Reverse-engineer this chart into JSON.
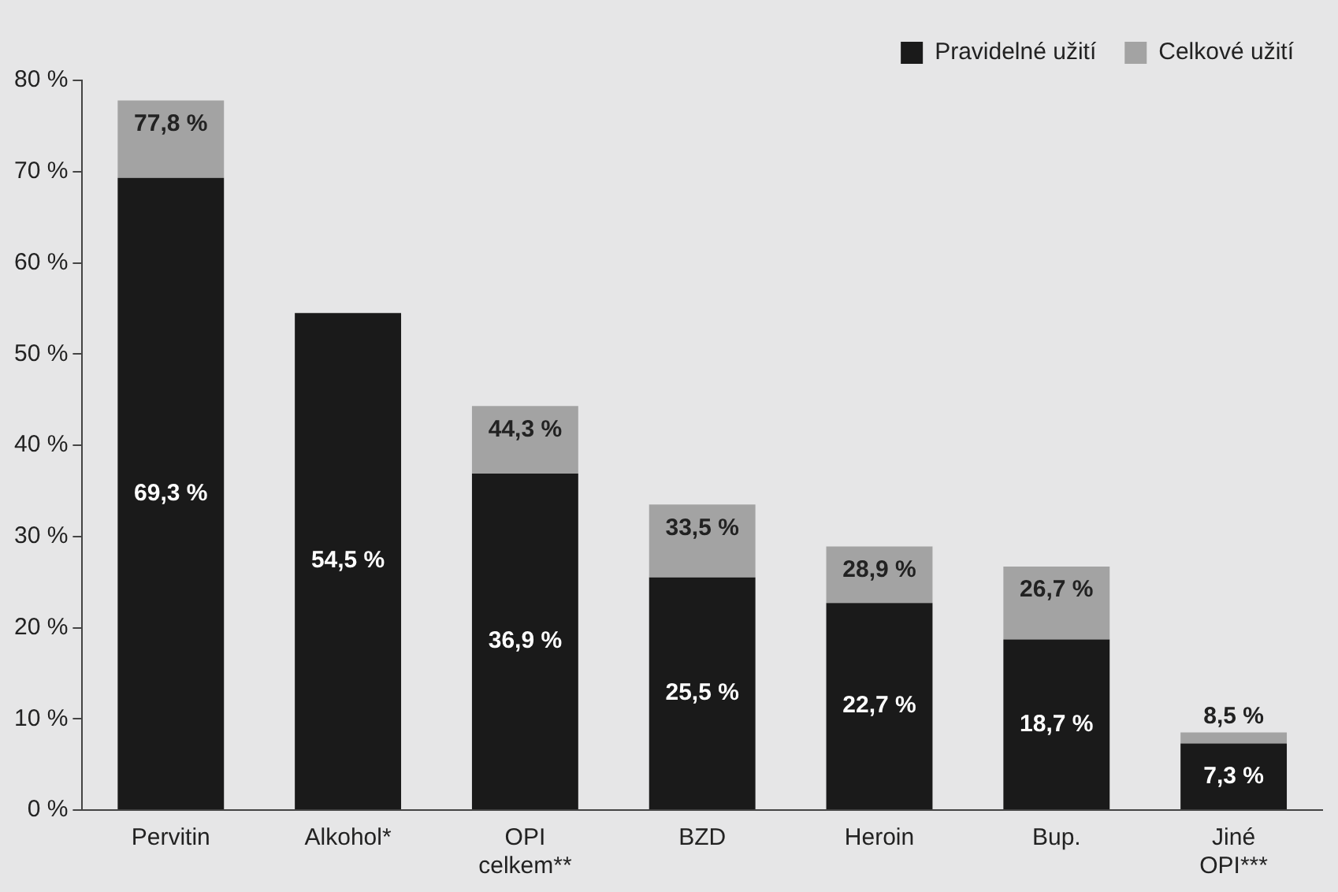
{
  "chart_data": {
    "type": "bar",
    "stacked": true,
    "categories": [
      "Pervitin",
      "Alkohol*",
      "OPI celkem**",
      "BZD",
      "Heroin",
      "Bup.",
      "Jiné OPI***"
    ],
    "series": [
      {
        "name": "Pravidelné užití",
        "color": "#1a1a1a",
        "values": [
          69.3,
          54.5,
          36.9,
          25.5,
          22.7,
          18.7,
          7.3
        ],
        "value_labels": [
          "69,3 %",
          "54,5 %",
          "36,9 %",
          "25,5 %",
          "22,7 %",
          "18,7 %",
          "7,3 %"
        ]
      },
      {
        "name": "Celkové užití",
        "color": "#a3a3a3",
        "values": [
          8.5,
          null,
          7.4,
          8.0,
          6.2,
          8.0,
          1.2
        ]
      }
    ],
    "totals": [
      "77,8 %",
      null,
      "44,3 %",
      "33,5 %",
      "28,9 %",
      "26,7 %",
      "8,5 %"
    ],
    "ylim": [
      0,
      80
    ],
    "yticks": [
      {
        "value": 0,
        "label": "0 %"
      },
      {
        "value": 10,
        "label": "10 %"
      },
      {
        "value": 20,
        "label": "20 %"
      },
      {
        "value": 30,
        "label": "30 %"
      },
      {
        "value": 40,
        "label": "40 %"
      },
      {
        "value": 50,
        "label": "50 %"
      },
      {
        "value": 60,
        "label": "60 %"
      },
      {
        "value": 70,
        "label": "70 %"
      },
      {
        "value": 80,
        "label": "80 %"
      }
    ],
    "grid": false,
    "legend": "top right"
  }
}
